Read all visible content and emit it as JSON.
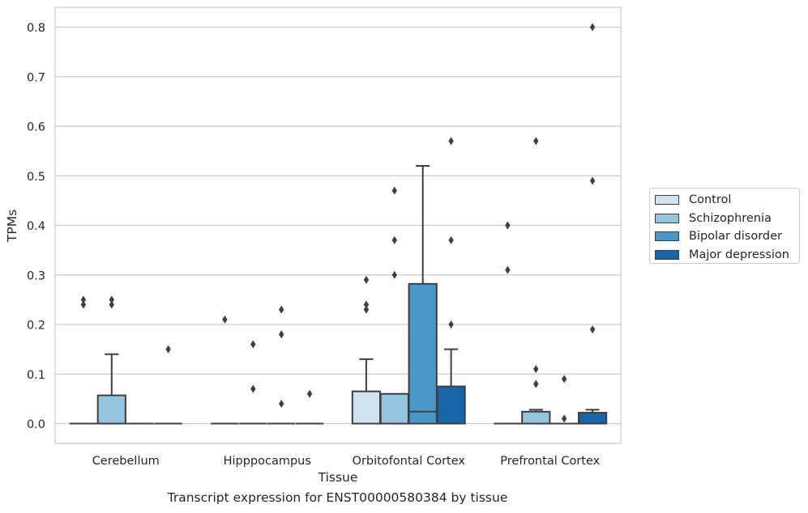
{
  "caption": "Transcript expression for ENST00000580384 by tissue",
  "chart_data": {
    "type": "boxplot",
    "xlabel": "Tissue",
    "ylabel": "TPMs",
    "ylim": [
      -0.04,
      0.84
    ],
    "yticks": [
      "0.0",
      "0.1",
      "0.2",
      "0.3",
      "0.4",
      "0.5",
      "0.6",
      "0.7",
      "0.8"
    ],
    "grid": true,
    "legend_position": "right",
    "categories": [
      "Cerebellum",
      "Hipppocampus",
      "Orbitofontal Cortex",
      "Prefrontal Cortex"
    ],
    "series": [
      {
        "name": "Control",
        "color": "#d0e1f2",
        "boxes": [
          {
            "q1": 0,
            "median": 0,
            "q3": 0,
            "whisker_low": 0,
            "whisker_high": 0,
            "outliers": [
              0.24,
              0.25
            ]
          },
          {
            "q1": 0,
            "median": 0,
            "q3": 0,
            "whisker_low": 0,
            "whisker_high": 0,
            "outliers": [
              0.21
            ]
          },
          {
            "q1": 0,
            "median": 0,
            "q3": 0.065,
            "whisker_low": 0,
            "whisker_high": 0.13,
            "outliers": [
              0.23,
              0.24,
              0.29
            ]
          },
          {
            "q1": 0,
            "median": 0,
            "q3": 0,
            "whisker_low": 0,
            "whisker_high": 0,
            "outliers": [
              0.31,
              0.4
            ]
          }
        ]
      },
      {
        "name": "Schizophrenia",
        "color": "#94c4df",
        "boxes": [
          {
            "q1": 0,
            "median": 0,
            "q3": 0.057,
            "whisker_low": 0,
            "whisker_high": 0.14,
            "outliers": [
              0.24,
              0.25
            ]
          },
          {
            "q1": 0,
            "median": 0,
            "q3": 0,
            "whisker_low": 0,
            "whisker_high": 0,
            "outliers": [
              0.07,
              0.16
            ]
          },
          {
            "q1": 0,
            "median": 0,
            "q3": 0.06,
            "whisker_low": 0,
            "whisker_high": 0.06,
            "outliers": [
              0.3,
              0.37,
              0.47
            ]
          },
          {
            "q1": 0,
            "median": 0,
            "q3": 0.024,
            "whisker_low": 0,
            "whisker_high": 0.028,
            "outliers": [
              0.08,
              0.11,
              0.57
            ]
          }
        ]
      },
      {
        "name": "Bipolar disorder",
        "color": "#4a98c9",
        "boxes": [
          {
            "q1": 0,
            "median": 0,
            "q3": 0,
            "whisker_low": 0,
            "whisker_high": 0,
            "outliers": []
          },
          {
            "q1": 0,
            "median": 0,
            "q3": 0,
            "whisker_low": 0,
            "whisker_high": 0,
            "outliers": [
              0.04,
              0.18,
              0.23
            ]
          },
          {
            "q1": 0,
            "median": 0.024,
            "q3": 0.282,
            "whisker_low": 0,
            "whisker_high": 0.52,
            "outliers": []
          },
          {
            "q1": 0,
            "median": 0,
            "q3": 0,
            "whisker_low": 0,
            "whisker_high": 0,
            "outliers": [
              0.01,
              0.09
            ]
          }
        ]
      },
      {
        "name": "Major depression",
        "color": "#1764ab",
        "boxes": [
          {
            "q1": 0,
            "median": 0,
            "q3": 0,
            "whisker_low": 0,
            "whisker_high": 0,
            "outliers": [
              0.15
            ]
          },
          {
            "q1": 0,
            "median": 0,
            "q3": 0,
            "whisker_low": 0,
            "whisker_high": 0,
            "outliers": [
              0.06
            ]
          },
          {
            "q1": 0,
            "median": 0,
            "q3": 0.075,
            "whisker_low": 0,
            "whisker_high": 0.15,
            "outliers": [
              0.2,
              0.37,
              0.57
            ]
          },
          {
            "q1": 0,
            "median": 0,
            "q3": 0.022,
            "whisker_low": 0,
            "whisker_high": 0.028,
            "outliers": [
              0.19,
              0.49,
              0.8
            ]
          }
        ]
      }
    ]
  }
}
